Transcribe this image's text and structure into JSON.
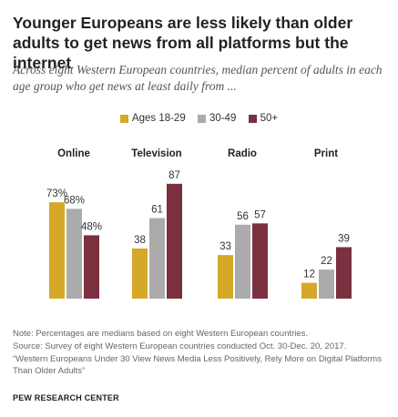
{
  "title": "Younger Europeans are less likely than older adults to get news from all platforms but the internet",
  "subtitle": "Across eight Western European countries, median percent of adults in each age group who get news at least daily from ...",
  "footnotes": {
    "note": "Note: Percentages are medians based on eight Western European countries.",
    "source": "Source: Survey of eight Western European countries conducted Oct. 30-Dec. 20, 2017.",
    "report": "“Western Europeans Under 30 View News Media Less Positively, Rely More on Digital Platforms Than Older Adults”"
  },
  "brand": "PEW RESEARCH CENTER",
  "chart_data": {
    "type": "bar",
    "categories": [
      "Online",
      "Television",
      "Radio",
      "Print"
    ],
    "series": [
      {
        "name": "Ages 18-29",
        "color": "#d4a829",
        "values": [
          73,
          38,
          33,
          12
        ],
        "labels": [
          "73%",
          "38",
          "33",
          "12"
        ]
      },
      {
        "name": "30-49",
        "color": "#ababab",
        "values": [
          68,
          61,
          56,
          22
        ],
        "labels": [
          "68%",
          "61",
          "56",
          "22"
        ]
      },
      {
        "name": "50+",
        "color": "#7b3040",
        "values": [
          48,
          87,
          57,
          39
        ],
        "labels": [
          "48%",
          "87",
          "57",
          "39"
        ]
      }
    ],
    "ylim": [
      0,
      100
    ],
    "grid": false,
    "legend": "top-center"
  }
}
